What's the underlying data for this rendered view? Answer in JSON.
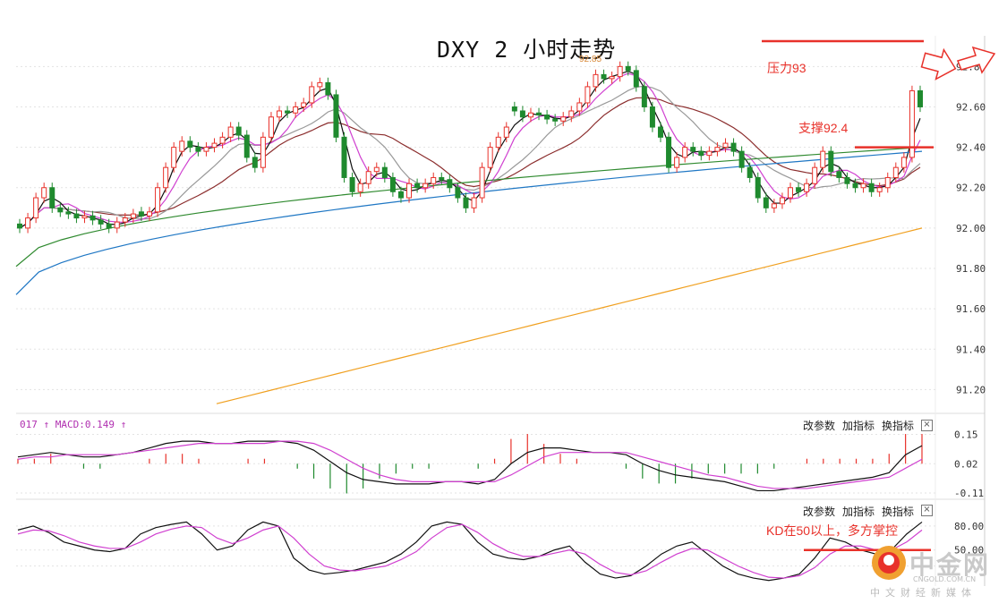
{
  "title": "DXY 2 小时走势",
  "annotations": {
    "resistance": "压力93",
    "support": "支撑92.4",
    "kd": "KD在50以上，多方掌控",
    "peak_label": "92.85"
  },
  "macd_label": "017 ↑ MACD:0.149 ↑",
  "panel_buttons": {
    "change_params": "改参数",
    "add_indicator": "加指标",
    "swap_indicator": "换指标",
    "close": "×"
  },
  "colors": {
    "up": "#e8312a",
    "down": "#1f8a2e",
    "ma5": "#111111",
    "ma10": "#d040d0",
    "ma20": "#999999",
    "ma30": "#8b2d2d",
    "ma60": "#2f8a2f",
    "ma120": "#1f77c4",
    "ma250": "#f0a020"
  },
  "watermark": {
    "brand": "中金网",
    "domain": "CNGOLD.COM.CN",
    "sub": "中文财经新媒体"
  },
  "chart_data": [
    {
      "type": "line",
      "subtype": "candlestick",
      "title": "DXY 2 小时走势",
      "y_ticks": [
        "92.80",
        "92.60",
        "92.40",
        "92.20",
        "92.00",
        "91.80",
        "91.60",
        "91.40",
        "91.20"
      ],
      "ylim": [
        91.1,
        92.93
      ],
      "candles_close": [
        92.0,
        92.05,
        92.15,
        92.2,
        92.1,
        92.08,
        92.07,
        92.05,
        92.06,
        92.04,
        92.02,
        92.0,
        92.03,
        92.05,
        92.07,
        92.06,
        92.08,
        92.2,
        92.3,
        92.4,
        92.43,
        92.4,
        92.38,
        92.4,
        92.42,
        92.45,
        92.5,
        92.46,
        92.35,
        92.3,
        92.45,
        92.55,
        92.58,
        92.57,
        92.6,
        92.62,
        92.7,
        92.72,
        92.66,
        92.45,
        92.25,
        92.18,
        92.22,
        92.28,
        92.3,
        92.25,
        92.18,
        92.15,
        92.22,
        92.2,
        92.22,
        92.25,
        92.24,
        92.2,
        92.15,
        92.1,
        92.15,
        92.3,
        92.4,
        92.45,
        92.5,
        92.58,
        92.55,
        92.57,
        92.56,
        92.54,
        92.53,
        92.55,
        92.58,
        92.62,
        92.7,
        92.76,
        92.74,
        92.75,
        92.8,
        92.78,
        92.7,
        92.6,
        92.5,
        92.45,
        92.3,
        92.35,
        92.4,
        92.38,
        92.36,
        92.38,
        92.4,
        92.42,
        92.38,
        92.3,
        92.25,
        92.15,
        92.1,
        92.12,
        92.15,
        92.2,
        92.18,
        92.22,
        92.3,
        92.38,
        92.28,
        92.25,
        92.22,
        92.2,
        92.22,
        92.18,
        92.2,
        92.25,
        92.3,
        92.35,
        92.68,
        92.6
      ],
      "candles_open": [
        92.02,
        92.0,
        92.05,
        92.15,
        92.2,
        92.1,
        92.08,
        92.07,
        92.05,
        92.06,
        92.04,
        92.02,
        92.0,
        92.03,
        92.05,
        92.08,
        92.06,
        92.08,
        92.2,
        92.3,
        92.38,
        92.43,
        92.4,
        92.38,
        92.4,
        92.42,
        92.45,
        92.5,
        92.46,
        92.35,
        92.3,
        92.45,
        92.55,
        92.58,
        92.57,
        92.6,
        92.62,
        92.7,
        92.72,
        92.66,
        92.45,
        92.25,
        92.18,
        92.22,
        92.28,
        92.3,
        92.25,
        92.18,
        92.15,
        92.22,
        92.2,
        92.22,
        92.25,
        92.24,
        92.2,
        92.15,
        92.1,
        92.15,
        92.3,
        92.4,
        92.45,
        92.6,
        92.58,
        92.55,
        92.57,
        92.56,
        92.54,
        92.53,
        92.55,
        92.58,
        92.62,
        92.7,
        92.76,
        92.74,
        92.75,
        92.8,
        92.78,
        92.7,
        92.6,
        92.5,
        92.45,
        92.3,
        92.35,
        92.4,
        92.38,
        92.36,
        92.38,
        92.4,
        92.42,
        92.38,
        92.3,
        92.25,
        92.15,
        92.1,
        92.12,
        92.15,
        92.2,
        92.18,
        92.22,
        92.3,
        92.38,
        92.28,
        92.25,
        92.22,
        92.2,
        92.22,
        92.18,
        92.2,
        92.25,
        92.3,
        92.35,
        92.68
      ],
      "levels": {
        "resistance": 93.0,
        "support": 92.4
      },
      "ma_series": [
        {
          "key": "ma120",
          "from": 91.67,
          "to": 92.38
        },
        {
          "key": "ma60",
          "from": 91.81,
          "to": 92.4
        },
        {
          "key": "ma250",
          "from": 91.13,
          "to": 92.0
        }
      ]
    },
    {
      "type": "line",
      "subtype": "macd",
      "y_ticks": [
        "0.15",
        "0.02",
        "-0.11"
      ],
      "ylim": [
        -0.13,
        0.18
      ],
      "dif": [
        0.05,
        0.06,
        0.07,
        0.06,
        0.05,
        0.05,
        0.06,
        0.07,
        0.09,
        0.11,
        0.12,
        0.12,
        0.11,
        0.11,
        0.12,
        0.12,
        0.12,
        0.11,
        0.08,
        0.03,
        -0.02,
        -0.05,
        -0.06,
        -0.07,
        -0.07,
        -0.07,
        -0.06,
        -0.06,
        -0.07,
        -0.05,
        0.02,
        0.07,
        0.09,
        0.09,
        0.08,
        0.07,
        0.07,
        0.06,
        0.02,
        -0.01,
        -0.03,
        -0.04,
        -0.05,
        -0.06,
        -0.08,
        -0.1,
        -0.1,
        -0.09,
        -0.08,
        -0.07,
        -0.06,
        -0.05,
        -0.04,
        -0.02,
        0.06,
        0.1
      ],
      "dea": [
        0.04,
        0.05,
        0.05,
        0.06,
        0.06,
        0.06,
        0.06,
        0.07,
        0.08,
        0.09,
        0.1,
        0.11,
        0.11,
        0.11,
        0.11,
        0.11,
        0.12,
        0.12,
        0.11,
        0.08,
        0.04,
        0.0,
        -0.03,
        -0.05,
        -0.06,
        -0.06,
        -0.06,
        -0.06,
        -0.06,
        -0.06,
        -0.03,
        0.01,
        0.05,
        0.07,
        0.07,
        0.07,
        0.07,
        0.07,
        0.05,
        0.03,
        0.01,
        -0.01,
        -0.03,
        -0.04,
        -0.06,
        -0.08,
        -0.09,
        -0.09,
        -0.09,
        -0.08,
        -0.07,
        -0.06,
        -0.05,
        -0.04,
        0.0,
        0.04
      ]
    },
    {
      "type": "line",
      "subtype": "kd",
      "y_ticks": [
        "80.00",
        "50.00"
      ],
      "ylim": [
        5,
        100
      ],
      "k": [
        75,
        80,
        72,
        60,
        55,
        50,
        48,
        52,
        70,
        78,
        82,
        85,
        70,
        50,
        55,
        75,
        85,
        80,
        40,
        25,
        20,
        22,
        25,
        30,
        35,
        45,
        60,
        80,
        85,
        82,
        60,
        45,
        40,
        38,
        42,
        50,
        55,
        35,
        20,
        15,
        18,
        30,
        45,
        55,
        60,
        45,
        30,
        20,
        15,
        12,
        15,
        20,
        40,
        65,
        60,
        50,
        45,
        50,
        70,
        85
      ],
      "d": [
        70,
        75,
        74,
        68,
        60,
        55,
        52,
        52,
        60,
        70,
        76,
        80,
        78,
        65,
        58,
        65,
        75,
        80,
        65,
        45,
        30,
        25,
        24,
        27,
        30,
        38,
        48,
        65,
        78,
        82,
        72,
        58,
        48,
        42,
        42,
        46,
        50,
        45,
        32,
        22,
        19,
        24,
        35,
        45,
        52,
        50,
        40,
        30,
        22,
        16,
        15,
        18,
        28,
        45,
        55,
        55,
        50,
        50,
        60,
        75
      ]
    }
  ]
}
